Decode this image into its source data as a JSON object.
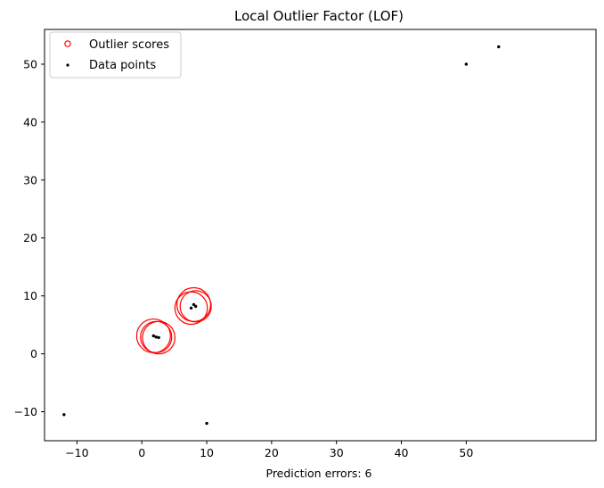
{
  "chart_data": {
    "type": "scatter",
    "title": "Local Outlier Factor (LOF)",
    "xlabel": "Prediction errors: 6",
    "ylabel": "",
    "xlim": [
      -15,
      70
    ],
    "ylim": [
      -15,
      56
    ],
    "xticks": [
      -10,
      0,
      10,
      20,
      30,
      40,
      50
    ],
    "yticks": [
      -10,
      0,
      10,
      20,
      30,
      40,
      50
    ],
    "xtick_labels": [
      "−10",
      "0",
      "10",
      "20",
      "30",
      "40",
      "50"
    ],
    "ytick_labels": [
      "−10",
      "0",
      "10",
      "20",
      "30",
      "40",
      "50"
    ],
    "grid": false,
    "legend_position": "top-left",
    "series": [
      {
        "name": "Outlier scores",
        "marker": "open-circle",
        "color": "#ff0000",
        "points": [
          {
            "x": 1.8,
            "y": 3.1,
            "radius": 2.6
          },
          {
            "x": 2.2,
            "y": 2.9,
            "radius": 2.4
          },
          {
            "x": 2.6,
            "y": 2.8,
            "radius": 2.5
          },
          {
            "x": 7.6,
            "y": 7.9,
            "radius": 2.5
          },
          {
            "x": 8.0,
            "y": 8.5,
            "radius": 2.6
          },
          {
            "x": 8.3,
            "y": 8.2,
            "radius": 2.4
          }
        ]
      },
      {
        "name": "Data points",
        "marker": "dot",
        "color": "#000000",
        "points": [
          {
            "x": 1.8,
            "y": 3.1
          },
          {
            "x": 2.2,
            "y": 2.9
          },
          {
            "x": 2.6,
            "y": 2.8
          },
          {
            "x": 7.6,
            "y": 7.9
          },
          {
            "x": 8.0,
            "y": 8.5
          },
          {
            "x": 8.3,
            "y": 8.2
          },
          {
            "x": 50,
            "y": 50
          },
          {
            "x": 55,
            "y": 53
          },
          {
            "x": -12,
            "y": -10.5
          },
          {
            "x": 10,
            "y": -12
          }
        ]
      }
    ]
  }
}
